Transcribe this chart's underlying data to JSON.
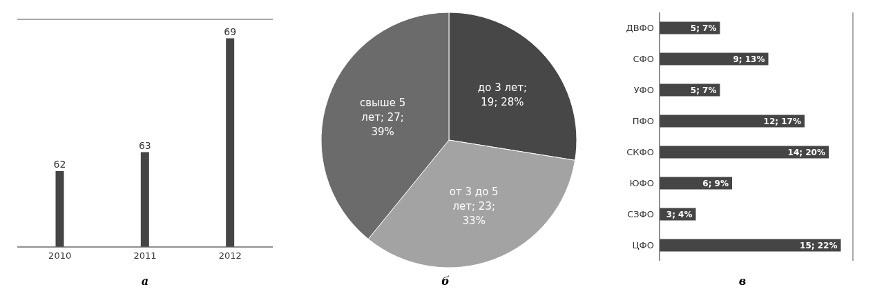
{
  "chart_data": [
    {
      "type": "bar",
      "title": "а",
      "categories": [
        "2010",
        "2011",
        "2012"
      ],
      "values": [
        62,
        63,
        69
      ],
      "color": "#454545",
      "data_labels": true,
      "ylim": [
        58,
        70
      ],
      "grid": "y",
      "tick_labels": "x"
    },
    {
      "type": "pie",
      "title": "б",
      "categories": [
        null,
        null,
        null
      ],
      "values": [
        19,
        23,
        27
      ],
      "value_labels": [
        "до 3 лет; 19; 28%",
        "от 3 до 5 лет; 23; 33%",
        "свыше 5 лет; 27; 39%"
      ],
      "colors": [
        "#474747",
        "#a3a3a3",
        "#6b6b6b"
      ]
    },
    {
      "type": "bar",
      "title": "в",
      "orientation": "horizontal",
      "categories": [
        "ДВФО",
        "СФО",
        "УФО",
        "ПФО",
        "СКФО",
        "ЮФО",
        "СЗФО",
        "ЦФО"
      ],
      "values": [
        5,
        9,
        5,
        12,
        14,
        6,
        3,
        15
      ],
      "value_labels": [
        "5; 7%",
        "9; 13%",
        "5; 7%",
        "12; 17%",
        "14; 20%",
        "6; 9%",
        "3; 4%",
        "15; 22%"
      ],
      "color": "#454545",
      "xlim": [
        0,
        16
      ],
      "grid": "x",
      "tick_labels": "y"
    }
  ]
}
